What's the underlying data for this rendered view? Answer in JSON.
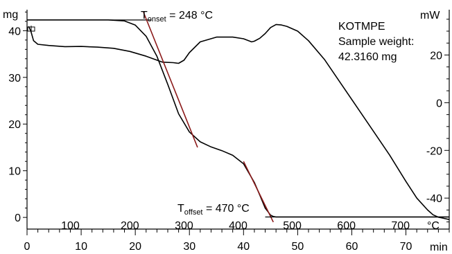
{
  "chart_data": {
    "type": "line",
    "title": "",
    "annotations": {
      "onset_label": "T",
      "onset_sub": "onset",
      "onset_value": " = 248 °C",
      "offset_label": "T",
      "offset_sub": "offset",
      "offset_value": " = 470 °C",
      "sample_name": "KOTMPE",
      "sample_weight_label": "Sample weight:",
      "sample_weight_value": "42.3160 mg"
    },
    "x_axis": {
      "unit": "min",
      "range": [
        0,
        78
      ],
      "ticks": [
        "0",
        "10",
        "20",
        "30",
        "40",
        "50",
        "60",
        "70"
      ]
    },
    "temp_axis": {
      "unit": "°C",
      "ticks": [
        {
          "label": "100",
          "time": 8
        },
        {
          "label": "200",
          "time": 19
        },
        {
          "label": "300",
          "time": 29
        },
        {
          "label": "400",
          "time": 39
        },
        {
          "label": "500",
          "time": 49
        },
        {
          "label": "600",
          "time": 59
        },
        {
          "label": "700",
          "time": 69
        }
      ]
    },
    "y_left": {
      "unit": "mg",
      "range": [
        -2.5,
        44.5
      ],
      "ticks": [
        "0",
        "10",
        "20",
        "30",
        "40"
      ]
    },
    "y_right": {
      "unit": "mW",
      "range": [
        -53,
        39
      ],
      "ticks": [
        "-40",
        "-20",
        "0",
        "20"
      ]
    },
    "series": [
      {
        "axis": "left",
        "x": [
          0,
          5,
          10,
          15,
          18,
          20,
          22,
          24,
          26,
          28,
          30,
          32,
          34,
          36,
          38,
          40,
          42,
          43,
          44,
          45,
          45.5,
          46,
          47,
          50,
          60,
          70,
          78
        ],
        "values": [
          42.3,
          42.3,
          42.3,
          42.3,
          42.1,
          41.2,
          38.8,
          34.5,
          28.5,
          22.2,
          18.3,
          16.2,
          15.1,
          14.3,
          13.3,
          11.5,
          7.5,
          4.8,
          2.0,
          0.5,
          0.2,
          0.1,
          0.1,
          0.1,
          0.1,
          0.1,
          0.1
        ]
      },
      {
        "axis": "right",
        "x": [
          0.3,
          0.7,
          1.2,
          2,
          4,
          7,
          10,
          13,
          16,
          19,
          22,
          25,
          27,
          28,
          29,
          30,
          32,
          35,
          38,
          40,
          41.5,
          42,
          43,
          44,
          45,
          46,
          47,
          48,
          50,
          52,
          55,
          58,
          61,
          64,
          67,
          70,
          72,
          74,
          75,
          76,
          77,
          78
        ],
        "values": [
          32,
          30,
          26,
          24.5,
          24,
          23.5,
          23.6,
          23.3,
          22.8,
          21.5,
          19.5,
          17,
          16.8,
          16.5,
          17.8,
          21,
          25.5,
          27.5,
          27.5,
          26.8,
          25.5,
          25.8,
          27,
          29,
          31.5,
          32.8,
          32.6,
          32,
          30,
          26,
          18,
          8,
          -2,
          -12,
          -22,
          -33,
          -40,
          -45,
          -47,
          -48,
          -48.5,
          -49
        ]
      }
    ],
    "tangents": [
      {
        "axis": "left",
        "from": [
          15,
          42.3
        ],
        "to": [
          23,
          42.3
        ]
      },
      {
        "axis": "left",
        "from": [
          21.5,
          44.0
        ],
        "to": [
          31.5,
          15.0
        ]
      },
      {
        "axis": "left",
        "from": [
          40,
          12.0
        ],
        "to": [
          45.5,
          -1.0
        ]
      },
      {
        "axis": "left",
        "from": [
          44,
          0.1
        ],
        "to": [
          78,
          0.1
        ]
      }
    ],
    "grid": false,
    "legend": "none"
  }
}
